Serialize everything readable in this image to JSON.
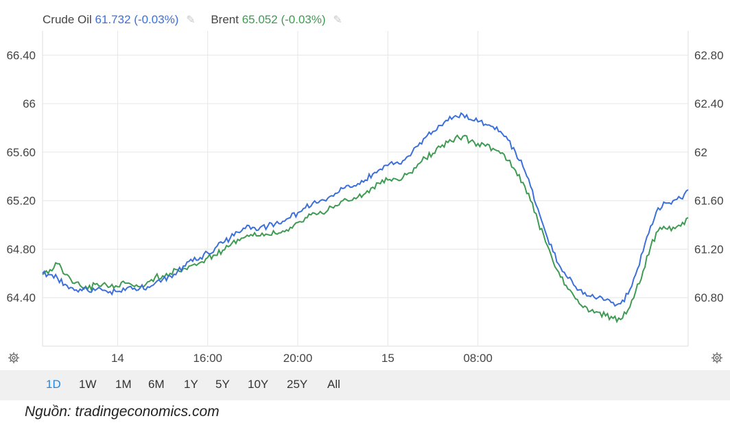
{
  "legend": {
    "crude_name": "Crude Oil",
    "crude_value": "61.732",
    "crude_change": "(-0.03%)",
    "brent_name": "Brent",
    "brent_value": "65.052",
    "brent_change": "(-0.03%)"
  },
  "ranges": [
    "1D",
    "1W",
    "1M",
    "6M",
    "1Y",
    "5Y",
    "10Y",
    "25Y",
    "All"
  ],
  "active_range": "1D",
  "source": "Nguồn: tradingeconomics.com",
  "colors": {
    "crude": "#3b6fd9",
    "brent": "#3f9a52",
    "grid": "#e6e6e6",
    "active": "#1e88e5"
  },
  "icons": [
    "gear-icon",
    "pencil-icon"
  ],
  "chart_data": {
    "type": "line",
    "x_ticks": [
      "14",
      "16:00",
      "20:00",
      "15",
      "08:00"
    ],
    "left_axis_ticks": [
      "64.40",
      "64.80",
      "65.20",
      "65.60",
      "66",
      "66.40"
    ],
    "right_axis_ticks": [
      "60.80",
      "61.20",
      "61.60",
      "62",
      "62.40",
      "62.80"
    ],
    "left_ylim": [
      64.0,
      66.6
    ],
    "right_ylim": [
      60.4,
      63.0
    ],
    "grid": true,
    "x_hours": [
      0,
      1,
      2,
      3,
      4,
      5,
      6,
      7,
      8,
      9,
      10,
      11,
      12,
      13,
      14,
      15,
      16,
      17,
      18,
      19,
      20,
      21,
      22,
      23,
      24,
      25,
      26,
      27,
      28,
      29,
      30,
      31,
      32,
      33,
      34,
      35,
      36,
      37,
      38,
      39,
      40,
      41,
      42,
      43,
      44,
      45,
      46,
      47,
      48,
      49,
      50,
      51,
      52,
      53,
      54,
      55,
      56,
      57,
      58,
      59,
      60,
      61,
      62,
      63,
      64,
      65,
      66,
      67,
      68,
      69,
      70,
      71,
      72,
      73,
      74,
      75,
      76,
      77,
      78,
      79,
      80,
      81,
      82,
      83,
      84,
      85,
      86
    ],
    "series": [
      {
        "name": "Brent",
        "axis": "left",
        "values": [
          64.59,
          64.63,
          64.68,
          64.59,
          64.52,
          64.5,
          64.47,
          64.51,
          64.51,
          64.49,
          64.49,
          64.52,
          64.5,
          64.49,
          64.53,
          64.57,
          64.58,
          64.6,
          64.63,
          64.64,
          64.67,
          64.69,
          64.73,
          64.75,
          64.79,
          64.83,
          64.88,
          64.9,
          64.91,
          64.91,
          64.92,
          64.93,
          64.95,
          64.98,
          65.02,
          65.06,
          65.1,
          65.11,
          65.12,
          65.16,
          65.2,
          65.2,
          65.23,
          65.26,
          65.31,
          65.34,
          65.37,
          65.38,
          65.39,
          65.43,
          65.5,
          65.55,
          65.59,
          65.64,
          65.68,
          65.72,
          65.73,
          65.69,
          65.67,
          65.65,
          65.63,
          65.59,
          65.53,
          65.45,
          65.35,
          65.2,
          65.03,
          64.86,
          64.7,
          64.57,
          64.47,
          64.39,
          64.32,
          64.29,
          64.28,
          64.25,
          64.23,
          64.22,
          64.3,
          64.45,
          64.62,
          64.82,
          64.95,
          64.97,
          64.98,
          64.99,
          65.06
        ]
      },
      {
        "name": "Crude Oil",
        "axis": "right",
        "values": [
          61.0,
          60.99,
          60.96,
          60.91,
          60.88,
          60.87,
          60.86,
          60.86,
          60.86,
          60.85,
          60.85,
          60.86,
          60.87,
          60.88,
          60.89,
          60.92,
          60.95,
          60.98,
          61.02,
          61.06,
          61.1,
          61.13,
          61.17,
          61.21,
          61.25,
          61.29,
          61.34,
          61.37,
          61.38,
          61.38,
          61.39,
          61.41,
          61.43,
          61.46,
          61.5,
          61.54,
          61.58,
          61.6,
          61.62,
          61.66,
          61.7,
          61.71,
          61.74,
          61.77,
          61.82,
          61.86,
          61.89,
          61.91,
          61.93,
          61.97,
          62.05,
          62.12,
          62.17,
          62.22,
          62.26,
          62.3,
          62.31,
          62.27,
          62.25,
          62.23,
          62.21,
          62.17,
          62.1,
          62.0,
          61.88,
          61.72,
          61.53,
          61.34,
          61.18,
          61.05,
          60.96,
          60.89,
          60.83,
          60.81,
          60.8,
          60.78,
          60.76,
          60.75,
          60.83,
          60.99,
          61.18,
          61.39,
          61.54,
          61.58,
          61.6,
          61.62,
          61.69
        ]
      }
    ]
  }
}
